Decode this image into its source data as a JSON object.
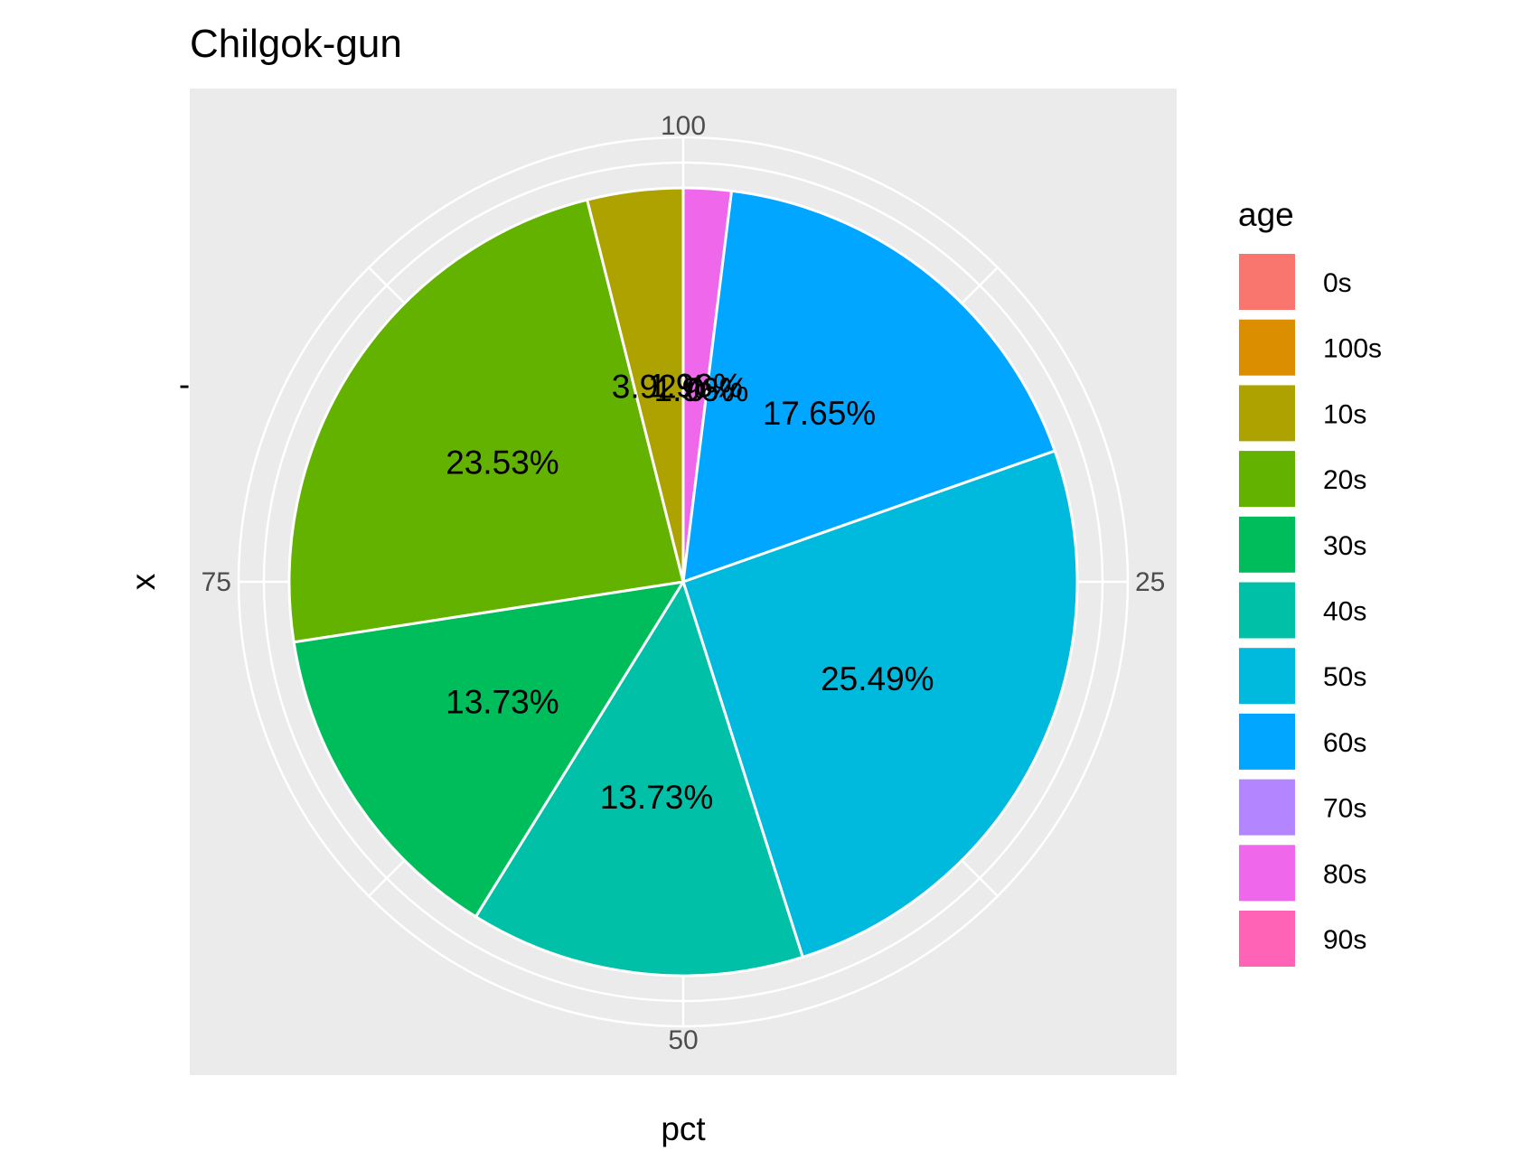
{
  "chart_data": {
    "type": "pie",
    "title": "Chilgok-gun",
    "xlabel": "pct",
    "ylabel": "x",
    "y_tick": "-",
    "angle_ticks": [
      {
        "value": 100,
        "label": "100"
      },
      {
        "value": 25,
        "label": "25"
      },
      {
        "value": 50,
        "label": "50"
      },
      {
        "value": 75,
        "label": "75"
      }
    ],
    "legend_title": "age",
    "legend_position": "right",
    "legend": [
      {
        "label": "0s",
        "color": "#F8766D"
      },
      {
        "label": "100s",
        "color": "#DB8E00"
      },
      {
        "label": "10s",
        "color": "#AEA200"
      },
      {
        "label": "20s",
        "color": "#64B200"
      },
      {
        "label": "30s",
        "color": "#00BD5C"
      },
      {
        "label": "40s",
        "color": "#00C1A7"
      },
      {
        "label": "50s",
        "color": "#00BADE"
      },
      {
        "label": "60s",
        "color": "#00A6FF"
      },
      {
        "label": "70s",
        "color": "#B385FF"
      },
      {
        "label": "80s",
        "color": "#EF67EB"
      },
      {
        "label": "90s",
        "color": "#FF63B6"
      }
    ],
    "slices": [
      {
        "category": "80s",
        "value": 1.96,
        "label": "1.96%",
        "color": "#EF67EB"
      },
      {
        "category": "60s",
        "value": 17.65,
        "label": "17.65%",
        "color": "#00A6FF"
      },
      {
        "category": "50s",
        "value": 25.49,
        "label": "25.49%",
        "color": "#00BADE"
      },
      {
        "category": "40s",
        "value": 13.73,
        "label": "13.73%",
        "color": "#00C1A7"
      },
      {
        "category": "30s",
        "value": 13.73,
        "label": "13.73%",
        "color": "#00BD5C"
      },
      {
        "category": "20s",
        "value": 23.53,
        "label": "23.53%",
        "color": "#64B200"
      },
      {
        "category": "10s",
        "value": 3.92,
        "label": "3.92%",
        "color": "#AEA200"
      }
    ],
    "overlapping_labels": [
      {
        "label": "1.96%"
      },
      {
        "label": "0%"
      }
    ],
    "panel_background": "#EBEBEB",
    "grid": true
  }
}
